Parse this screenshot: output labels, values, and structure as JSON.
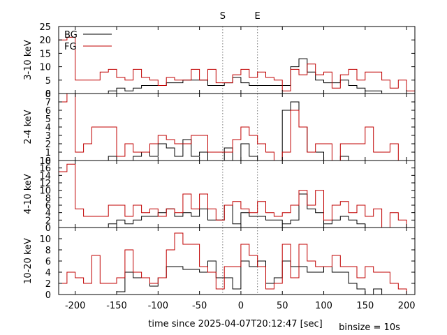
{
  "figure": {
    "xlabel": "time since 2025-04-07T20:12:47 [sec]",
    "binsize_note": "binsize = 10s",
    "colors": {
      "bg": "#000000",
      "fg": "#c00000",
      "marker": "#777777"
    }
  },
  "chart_data": [
    {
      "type": "line",
      "panel": "3-10 keV",
      "ylabel": "3-10 keV",
      "xlim": [
        -220,
        210
      ],
      "ylim": [
        0,
        25
      ],
      "yticks": [
        0,
        5,
        10,
        15,
        20,
        25
      ],
      "xticks": [
        -200,
        -150,
        -100,
        -50,
        0,
        50,
        100,
        150,
        200
      ],
      "markers": [
        {
          "label": "S",
          "x": -22
        },
        {
          "label": "E",
          "x": 20
        }
      ],
      "legend": {
        "position": "top-left",
        "entries": [
          "BG",
          "FG"
        ]
      },
      "bin_edges": [
        -220,
        -210,
        -200,
        -190,
        -180,
        -170,
        -160,
        -150,
        -140,
        -130,
        -120,
        -110,
        -100,
        -90,
        -80,
        -70,
        -60,
        -50,
        -40,
        -30,
        -20,
        -10,
        0,
        10,
        20,
        30,
        40,
        50,
        60,
        70,
        80,
        90,
        100,
        110,
        120,
        130,
        140,
        150,
        160,
        170,
        180,
        190,
        200,
        210
      ],
      "series": [
        {
          "name": "BG",
          "values": [
            0,
            0,
            0,
            0,
            0,
            0,
            1,
            2,
            1,
            2,
            3,
            3,
            3,
            4,
            4,
            5,
            5,
            5,
            3,
            3,
            4,
            6,
            4,
            3,
            3,
            3,
            3,
            3,
            10,
            13,
            8,
            5,
            4,
            4,
            5,
            3,
            2,
            1,
            1,
            0,
            0,
            0,
            0
          ]
        },
        {
          "name": "FG",
          "values": [
            20,
            21,
            5,
            5,
            5,
            8,
            9,
            6,
            5,
            9,
            6,
            5,
            3,
            6,
            5,
            5,
            9,
            5,
            9,
            4,
            4,
            7,
            9,
            6,
            8,
            6,
            5,
            1,
            9,
            7,
            11,
            7,
            8,
            2,
            7,
            9,
            5,
            8,
            8,
            5,
            2,
            5,
            1
          ]
        }
      ]
    },
    {
      "type": "line",
      "panel": "2-4 keV",
      "ylabel": "2-4 keV",
      "xlim": [
        -220,
        210
      ],
      "ylim": [
        0,
        8
      ],
      "yticks": [
        0,
        1,
        2,
        3,
        4,
        5,
        6,
        7,
        8
      ],
      "xticks": [
        -200,
        -150,
        -100,
        -50,
        0,
        50,
        100,
        150,
        200
      ],
      "bin_edges": [
        -220,
        -210,
        -200,
        -190,
        -180,
        -170,
        -160,
        -150,
        -140,
        -130,
        -120,
        -110,
        -100,
        -90,
        -80,
        -70,
        -60,
        -50,
        -40,
        -30,
        -20,
        -10,
        0,
        10,
        20,
        30,
        40,
        50,
        60,
        70,
        80,
        90,
        100,
        110,
        120,
        130,
        140,
        150,
        160,
        170,
        180,
        190,
        200,
        210
      ],
      "series": [
        {
          "name": "BG",
          "values": [
            0,
            0,
            0,
            0,
            0,
            0,
            0.5,
            0,
            0,
            0.5,
            1,
            0.5,
            2,
            1.5,
            0.5,
            2.5,
            0.5,
            1,
            0,
            0,
            1.5,
            0,
            2,
            0.5,
            0,
            0,
            0,
            6,
            7,
            4,
            1,
            1,
            0,
            0,
            0.5,
            0,
            0,
            0,
            0,
            0,
            0,
            0,
            0
          ]
        },
        {
          "name": "FG",
          "values": [
            7,
            8,
            1,
            2,
            4,
            4,
            4,
            0.5,
            2,
            1,
            1,
            2,
            3,
            2.5,
            2,
            2,
            3,
            3,
            1,
            1,
            1,
            2.5,
            4,
            3,
            2,
            1,
            0,
            1,
            6,
            4,
            1,
            2,
            2,
            0,
            2,
            2,
            2,
            4,
            1,
            1,
            2,
            0,
            0
          ]
        }
      ]
    },
    {
      "type": "line",
      "panel": "4-10 keV",
      "ylabel": "4-10 keV",
      "xlim": [
        -220,
        210
      ],
      "ylim": [
        0,
        18
      ],
      "yticks": [
        0,
        2,
        4,
        6,
        8,
        10,
        12,
        14,
        16,
        18
      ],
      "xticks": [
        -200,
        -150,
        -100,
        -50,
        0,
        50,
        100,
        150,
        200
      ],
      "bin_edges": [
        -220,
        -210,
        -200,
        -190,
        -180,
        -170,
        -160,
        -150,
        -140,
        -130,
        -120,
        -110,
        -100,
        -90,
        -80,
        -70,
        -60,
        -50,
        -40,
        -30,
        -20,
        -10,
        0,
        10,
        20,
        30,
        40,
        50,
        60,
        70,
        80,
        90,
        100,
        110,
        120,
        130,
        140,
        150,
        160,
        170,
        180,
        190,
        200,
        210
      ],
      "series": [
        {
          "name": "BG",
          "values": [
            0,
            0,
            0,
            0,
            0,
            0,
            1,
            2,
            1,
            2,
            3,
            3,
            4,
            5,
            3,
            4,
            3,
            5,
            2,
            2,
            6,
            1,
            4,
            3,
            3,
            2,
            2,
            1,
            2,
            9,
            5,
            4,
            1,
            2,
            3,
            2,
            1,
            0,
            0,
            0,
            0,
            0,
            0
          ]
        },
        {
          "name": "FG",
          "values": [
            15,
            17,
            5,
            3,
            3,
            3,
            6,
            6,
            3,
            6,
            4,
            5,
            3,
            5,
            4,
            9,
            5,
            9,
            5,
            2,
            6,
            7,
            5,
            4,
            7,
            4,
            3,
            4,
            6,
            10,
            6,
            10,
            2,
            6,
            7,
            4,
            6,
            3,
            5,
            0,
            4,
            2,
            0
          ]
        }
      ]
    },
    {
      "type": "line",
      "panel": "10-20 keV",
      "ylabel": "10-20 keV",
      "xlim": [
        -220,
        210
      ],
      "ylim": [
        0,
        12
      ],
      "yticks": [
        0,
        2,
        4,
        6,
        8,
        10
      ],
      "xticks": [
        -200,
        -150,
        -100,
        -50,
        0,
        50,
        100,
        150,
        200
      ],
      "bin_edges": [
        -220,
        -210,
        -200,
        -190,
        -180,
        -170,
        -160,
        -150,
        -140,
        -130,
        -120,
        -110,
        -100,
        -90,
        -80,
        -70,
        -60,
        -50,
        -40,
        -30,
        -20,
        -10,
        0,
        10,
        20,
        30,
        40,
        50,
        60,
        70,
        80,
        90,
        100,
        110,
        120,
        130,
        140,
        150,
        160,
        170,
        180,
        190,
        200,
        210
      ],
      "series": [
        {
          "name": "BG",
          "values": [
            0,
            0,
            0,
            0,
            0,
            0,
            0,
            0.5,
            4,
            3,
            3,
            1.5,
            3,
            5,
            5,
            4.5,
            4.5,
            4,
            6,
            3,
            3,
            1,
            6,
            5,
            6,
            2,
            3,
            6,
            5,
            5,
            4,
            4,
            5,
            4,
            4,
            2,
            1,
            0,
            1,
            0,
            0,
            0,
            0
          ]
        },
        {
          "name": "FG",
          "values": [
            2,
            4,
            3,
            2,
            7,
            2,
            2,
            3,
            8,
            4,
            3,
            2,
            3,
            8,
            11,
            9,
            9,
            5,
            4,
            1,
            5,
            5,
            9,
            7,
            5,
            1,
            2,
            9,
            3,
            9,
            6,
            5,
            5,
            7,
            5,
            5,
            3,
            5,
            4,
            4,
            2,
            1,
            0
          ]
        }
      ]
    }
  ]
}
